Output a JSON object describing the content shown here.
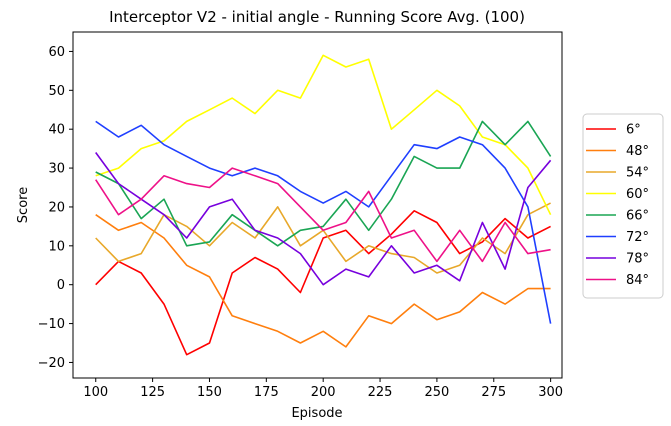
{
  "chart_data": {
    "type": "line",
    "title": "Interceptor V2 - initial angle - Running Score Avg. (100)",
    "xlabel": "Episode",
    "ylabel": "Score",
    "xlim": [
      90,
      305
    ],
    "ylim": [
      -24,
      65
    ],
    "xticks": [
      100,
      125,
      150,
      175,
      200,
      225,
      250,
      275,
      300
    ],
    "yticks": [
      -20,
      -10,
      0,
      10,
      20,
      30,
      40,
      50,
      60
    ],
    "grid": false,
    "legend_position": "right, outside",
    "x": [
      100,
      110,
      120,
      130,
      140,
      150,
      160,
      170,
      180,
      190,
      200,
      210,
      220,
      230,
      240,
      250,
      260,
      270,
      280,
      290,
      300
    ],
    "series": [
      {
        "name": "6°",
        "color": "#ff0000",
        "values": [
          0,
          6,
          3,
          -5,
          -18,
          -15,
          3,
          7,
          4,
          -2,
          12,
          14,
          8,
          13,
          19,
          16,
          8,
          11,
          17,
          12,
          15
        ]
      },
      {
        "name": "48°",
        "color": "#ff7f0e",
        "values": [
          18,
          14,
          16,
          12,
          5,
          2,
          -8,
          -10,
          -12,
          -15,
          -12,
          -16,
          -8,
          -10,
          -5,
          -9,
          -7,
          -2,
          -5,
          -1,
          -1
        ]
      },
      {
        "name": "54°",
        "color": "#e8a82a",
        "values": [
          12,
          6,
          8,
          18,
          15,
          10,
          16,
          12,
          20,
          10,
          14,
          6,
          10,
          8,
          7,
          3,
          5,
          12,
          8,
          18,
          21
        ]
      },
      {
        "name": "60°",
        "color": "#ffff00",
        "values": [
          28,
          30,
          35,
          37,
          42,
          45,
          48,
          44,
          50,
          48,
          59,
          56,
          58,
          40,
          45,
          50,
          46,
          38,
          36,
          30,
          18
        ]
      },
      {
        "name": "66°",
        "color": "#1aa554",
        "values": [
          29,
          26,
          17,
          22,
          10,
          11,
          18,
          14,
          10,
          14,
          15,
          22,
          14,
          22,
          33,
          30,
          30,
          42,
          36,
          42,
          33
        ]
      },
      {
        "name": "72°",
        "color": "#1f3fff",
        "values": [
          42,
          38,
          41,
          36,
          33,
          30,
          28,
          30,
          28,
          24,
          21,
          24,
          20,
          28,
          36,
          35,
          38,
          36,
          30,
          20,
          -10
        ]
      },
      {
        "name": "78°",
        "color": "#7700dd",
        "values": [
          34,
          26,
          22,
          18,
          12,
          20,
          22,
          14,
          12,
          8,
          0,
          4,
          2,
          10,
          3,
          5,
          1,
          16,
          4,
          25,
          32
        ]
      },
      {
        "name": "84°",
        "color": "#ee1188",
        "values": [
          27,
          18,
          22,
          28,
          26,
          25,
          30,
          28,
          26,
          20,
          14,
          16,
          24,
          12,
          14,
          6,
          14,
          6,
          16,
          8,
          9
        ]
      }
    ]
  }
}
